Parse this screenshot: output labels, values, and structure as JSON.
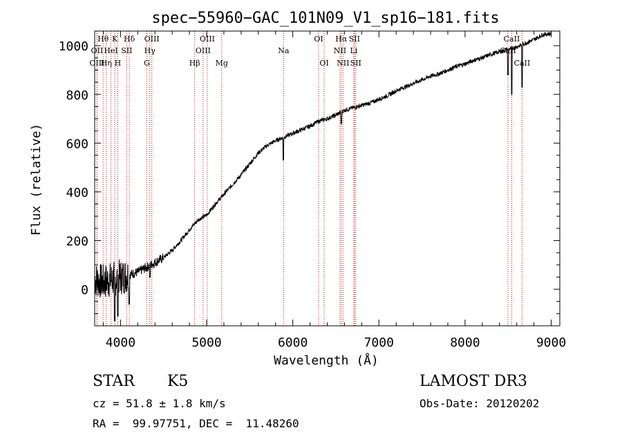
{
  "chart_data": {
    "type": "line",
    "title": "spec−55960−GAC_101N09_V1_sp16−181.fits",
    "xlabel": "Wavelength (Å)",
    "ylabel": "Flux (relative)",
    "xlim": [
      3700,
      9100
    ],
    "ylim": [
      -150,
      1060
    ],
    "xticks": [
      4000,
      5000,
      6000,
      7000,
      8000,
      9000
    ],
    "yticks": [
      0,
      200,
      400,
      600,
      800,
      1000
    ],
    "grid": false,
    "series": [
      {
        "name": "flux",
        "points": [
          [
            3700,
            40
          ],
          [
            3800,
            30
          ],
          [
            3900,
            40
          ],
          [
            4000,
            50
          ],
          [
            4100,
            60
          ],
          [
            4200,
            70
          ],
          [
            4300,
            90
          ],
          [
            4400,
            110
          ],
          [
            4500,
            130
          ],
          [
            4600,
            160
          ],
          [
            4700,
            200
          ],
          [
            4800,
            245
          ],
          [
            4900,
            285
          ],
          [
            5000,
            305
          ],
          [
            5100,
            350
          ],
          [
            5200,
            390
          ],
          [
            5300,
            430
          ],
          [
            5400,
            470
          ],
          [
            5500,
            515
          ],
          [
            5600,
            560
          ],
          [
            5700,
            590
          ],
          [
            5800,
            610
          ],
          [
            5900,
            625
          ],
          [
            6000,
            640
          ],
          [
            6100,
            655
          ],
          [
            6200,
            670
          ],
          [
            6300,
            690
          ],
          [
            6400,
            700
          ],
          [
            6500,
            715
          ],
          [
            6600,
            735
          ],
          [
            6700,
            745
          ],
          [
            6800,
            755
          ],
          [
            6900,
            765
          ],
          [
            7000,
            780
          ],
          [
            7100,
            795
          ],
          [
            7200,
            815
          ],
          [
            7300,
            830
          ],
          [
            7400,
            845
          ],
          [
            7500,
            860
          ],
          [
            7600,
            875
          ],
          [
            7700,
            885
          ],
          [
            7800,
            900
          ],
          [
            7900,
            915
          ],
          [
            8000,
            925
          ],
          [
            8100,
            940
          ],
          [
            8200,
            950
          ],
          [
            8300,
            965
          ],
          [
            8400,
            975
          ],
          [
            8500,
            985
          ],
          [
            8600,
            995
          ],
          [
            8700,
            1010
          ],
          [
            8800,
            1025
          ],
          [
            8900,
            1045
          ],
          [
            9000,
            1050
          ]
        ],
        "absorption_dips": [
          [
            3933,
            -130
          ],
          [
            3968,
            -110
          ],
          [
            4100,
            -60
          ],
          [
            4340,
            50
          ],
          [
            5890,
            530
          ],
          [
            6563,
            680
          ],
          [
            8498,
            880
          ],
          [
            8542,
            800
          ],
          [
            8662,
            830
          ]
        ]
      }
    ],
    "spectral_lines": [
      {
        "label": "Hθ",
        "x": 3798,
        "row": 0
      },
      {
        "label": "OII",
        "x": 3727,
        "row": 1
      },
      {
        "label": "OIII",
        "x": 3727,
        "row": 2
      },
      {
        "label": "K",
        "x": 3934,
        "row": 0
      },
      {
        "label": "HeI",
        "x": 3889,
        "row": 1
      },
      {
        "label": "Hη",
        "x": 3835,
        "row": 2
      },
      {
        "label": "Hδ",
        "x": 4102,
        "row": 0
      },
      {
        "label": "SII",
        "x": 4072,
        "row": 1
      },
      {
        "label": "H",
        "x": 3968,
        "row": 2
      },
      {
        "label": "OIII",
        "x": 4363,
        "row": 0
      },
      {
        "label": "Hγ",
        "x": 4340,
        "row": 1
      },
      {
        "label": "G",
        "x": 4305,
        "row": 2
      },
      {
        "label": "Hβ",
        "x": 4861,
        "row": 2
      },
      {
        "label": "OIII",
        "x": 5007,
        "row": 0
      },
      {
        "label": "OIII",
        "x": 4959,
        "row": 1
      },
      {
        "label": "Mg",
        "x": 5175,
        "row": 2
      },
      {
        "label": "Na",
        "x": 5893,
        "row": 1
      },
      {
        "label": "OI",
        "x": 6300,
        "row": 0
      },
      {
        "label": "OI",
        "x": 6364,
        "row": 2
      },
      {
        "label": "Hα",
        "x": 6563,
        "row": 0
      },
      {
        "label": "SII",
        "x": 6716,
        "row": 0
      },
      {
        "label": "NII",
        "x": 6548,
        "row": 1
      },
      {
        "label": "Li",
        "x": 6708,
        "row": 1
      },
      {
        "label": "NII",
        "x": 6583,
        "row": 2
      },
      {
        "label": "SII",
        "x": 6731,
        "row": 2
      },
      {
        "label": "CaII",
        "x": 8542,
        "row": 0
      },
      {
        "label": "CaII",
        "x": 8498,
        "row": 1
      },
      {
        "label": "CaII",
        "x": 8662,
        "row": 2
      }
    ]
  },
  "info": {
    "class": "STAR",
    "subclass": "K5",
    "survey": "LAMOST DR3",
    "cz": "cz = 51.8 ± 1.8 km/s",
    "obs_date": "Obs-Date: 20120202",
    "coords": "RA =  99.97751, DEC =  11.48260"
  },
  "colors": {
    "line_marker": "#cc0000",
    "spectrum": "#000000"
  }
}
